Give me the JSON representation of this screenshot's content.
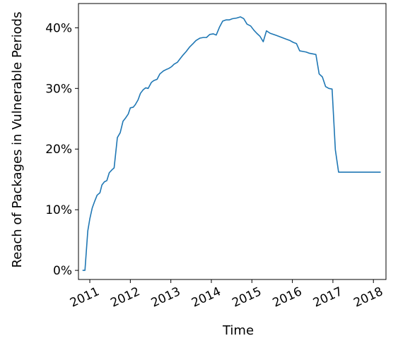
{
  "chart_data": {
    "type": "line",
    "title": "",
    "xlabel": "Time",
    "ylabel": "Reach of Packages in Vulnerable Periods",
    "x_tick_labels": [
      "2011",
      "2012",
      "2013",
      "2014",
      "2015",
      "2016",
      "2017",
      "2018"
    ],
    "y_tick_labels": [
      "0%",
      "10%",
      "20%",
      "30%",
      "40%"
    ],
    "y_ticks": [
      0,
      10,
      20,
      30,
      40
    ],
    "xlim": [
      2010.72,
      2018.31
    ],
    "ylim": [
      -1.5,
      44.0
    ],
    "grid": false,
    "legend": "none",
    "series": [
      {
        "color": "#1f77b4",
        "x": [
          2010.82,
          2010.88,
          2010.95,
          2011.0,
          2011.06,
          2011.12,
          2011.18,
          2011.25,
          2011.3,
          2011.36,
          2011.42,
          2011.48,
          2011.55,
          2011.6,
          2011.68,
          2011.75,
          2011.82,
          2011.88,
          2011.95,
          2012.0,
          2012.07,
          2012.12,
          2012.19,
          2012.25,
          2012.32,
          2012.38,
          2012.44,
          2012.52,
          2012.58,
          2012.66,
          2012.73,
          2012.82,
          2012.88,
          2012.95,
          2013.02,
          2013.08,
          2013.16,
          2013.24,
          2013.3,
          2013.38,
          2013.46,
          2013.55,
          2013.62,
          2013.72,
          2013.8,
          2013.88,
          2013.96,
          2014.05,
          2014.12,
          2014.2,
          2014.28,
          2014.36,
          2014.44,
          2014.52,
          2014.62,
          2014.72,
          2014.8,
          2014.88,
          2014.97,
          2015.05,
          2015.12,
          2015.2,
          2015.28,
          2015.36,
          2015.45,
          2015.54,
          2015.62,
          2015.7,
          2015.78,
          2015.86,
          2015.94,
          2016.02,
          2016.1,
          2016.18,
          2016.26,
          2016.34,
          2016.42,
          2016.5,
          2016.58,
          2016.66,
          2016.74,
          2016.82,
          2016.9,
          2016.98,
          2017.06,
          2017.14,
          2017.22,
          2017.3,
          2017.38,
          2017.47,
          2017.55,
          2017.63,
          2017.72,
          2017.8,
          2017.87,
          2017.95,
          2018.0,
          2018.06,
          2018.12,
          2018.18
        ],
        "y": [
          0.0,
          0.0,
          6.5,
          8.5,
          10.3,
          11.4,
          12.4,
          12.8,
          14.1,
          14.6,
          14.8,
          16.1,
          16.6,
          16.9,
          21.9,
          22.7,
          24.6,
          25.1,
          25.8,
          26.8,
          26.9,
          27.3,
          28.1,
          29.2,
          29.8,
          30.1,
          30.0,
          31.0,
          31.3,
          31.5,
          32.4,
          32.9,
          33.1,
          33.3,
          33.6,
          34.0,
          34.3,
          35.0,
          35.5,
          36.1,
          36.8,
          37.4,
          37.9,
          38.3,
          38.4,
          38.4,
          38.9,
          39.0,
          38.8,
          40.1,
          41.1,
          41.3,
          41.3,
          41.5,
          41.6,
          41.8,
          41.5,
          40.6,
          40.3,
          39.6,
          39.1,
          38.6,
          37.7,
          39.5,
          39.1,
          38.9,
          38.7,
          38.5,
          38.3,
          38.1,
          37.9,
          37.6,
          37.4,
          36.2,
          36.1,
          36.0,
          35.8,
          35.7,
          35.6,
          32.4,
          31.9,
          30.3,
          30.0,
          29.9,
          19.9,
          16.2,
          16.2,
          16.2,
          16.2,
          16.2,
          16.2,
          16.2,
          16.2,
          16.2,
          16.2,
          16.2,
          16.2,
          16.2,
          16.2,
          16.2
        ]
      }
    ]
  }
}
